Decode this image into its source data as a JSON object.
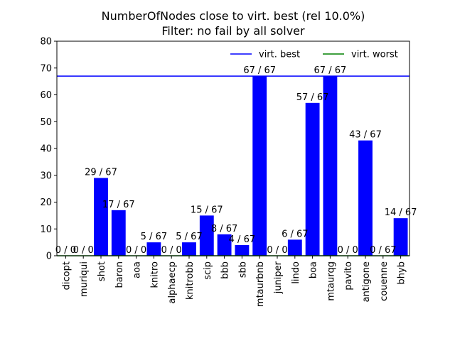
{
  "chart_data": {
    "type": "bar",
    "title": "NumberOfNodes close to virt. best (rel 10.0%)",
    "subtitle": "Filter: no fail by all solver",
    "xlabel": "",
    "ylabel": "",
    "ylim": [
      0,
      80
    ],
    "yticks": [
      0,
      10,
      20,
      30,
      40,
      50,
      60,
      70,
      80
    ],
    "categories": [
      "dicopt",
      "muriqui",
      "shot",
      "baron",
      "aoa",
      "knitro",
      "alphaecp",
      "knitrobb",
      "scip",
      "bbb",
      "sbb",
      "mtaurbnb",
      "juniper",
      "lindo",
      "boa",
      "mtaurqg",
      "pavito",
      "antigone",
      "couenne",
      "bhyb"
    ],
    "values": [
      0,
      0,
      29,
      17,
      0,
      5,
      0,
      5,
      15,
      8,
      4,
      67,
      0,
      6,
      57,
      67,
      0,
      43,
      0,
      14
    ],
    "bar_labels": [
      "0 / 0",
      "0 / 0",
      "29 / 67",
      "17 / 67",
      "0 / 0",
      "5 / 67",
      "0 / 0",
      "5 / 67",
      "15 / 67",
      "8 / 67",
      "4 / 67",
      "67 / 67",
      "0 / 0",
      "6 / 67",
      "57 / 67",
      "67 / 67",
      "0 / 0",
      "43 / 67",
      "0 / 67",
      "14 / 67"
    ],
    "bar_color": "#0000ff",
    "reference_lines": [
      {
        "name": "virt. best",
        "value": 67,
        "color": "#0000ff"
      },
      {
        "name": "virt. worst",
        "value": 0,
        "color": "#008000"
      }
    ],
    "legend_position": "top-right",
    "grid": false
  }
}
